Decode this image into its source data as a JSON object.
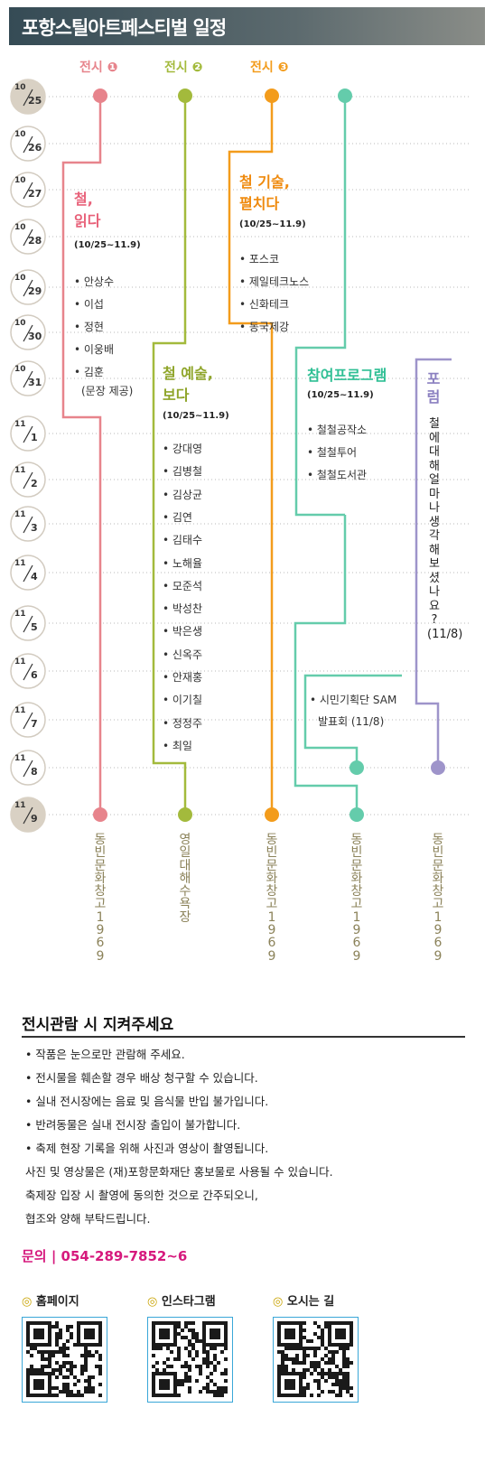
{
  "header": {
    "title": "포항스틸아트페스티벌 일정"
  },
  "columns": [
    {
      "label": "전시 ❶",
      "color": "#e7848c"
    },
    {
      "label": "전시 ❷",
      "color": "#a3ba3c"
    },
    {
      "label": "전시 ❸",
      "color": "#f39c1c"
    },
    {
      "label": "",
      "color": "#64ccab"
    },
    {
      "label": "",
      "color": "#9e94ca"
    }
  ],
  "dates": [
    {
      "top": "10",
      "bottom": "25",
      "highlight": true
    },
    {
      "top": "10",
      "bottom": "26",
      "highlight": false
    },
    {
      "top": "10",
      "bottom": "27",
      "highlight": false
    },
    {
      "top": "10",
      "bottom": "28",
      "highlight": false
    },
    {
      "top": "10",
      "bottom": "29",
      "highlight": false
    },
    {
      "top": "10",
      "bottom": "30",
      "highlight": false
    },
    {
      "top": "10",
      "bottom": "31",
      "highlight": false
    },
    {
      "top": "11",
      "bottom": "1",
      "highlight": false
    },
    {
      "top": "11",
      "bottom": "2",
      "highlight": false
    },
    {
      "top": "11",
      "bottom": "3",
      "highlight": false
    },
    {
      "top": "11",
      "bottom": "4",
      "highlight": false
    },
    {
      "top": "11",
      "bottom": "5",
      "highlight": false
    },
    {
      "top": "11",
      "bottom": "6",
      "highlight": false
    },
    {
      "top": "11",
      "bottom": "7",
      "highlight": false
    },
    {
      "top": "11",
      "bottom": "8",
      "highlight": false
    },
    {
      "top": "11",
      "bottom": "9",
      "highlight": true
    }
  ],
  "exhibitions": {
    "ex1": {
      "title": "철,\n읽다",
      "date": "(10/25~11.9)",
      "items": [
        "• 안상수",
        "• 이섭",
        "• 정현",
        "• 이웅배",
        "• 김훈",
        "(문장 제공)"
      ]
    },
    "ex2": {
      "title": "철 예술,\n보다",
      "date": "(10/25~11.9)",
      "items": [
        "• 강대영",
        "• 김병철",
        "• 김상균",
        "• 김연",
        "• 김태수",
        "• 노해율",
        "• 모준석",
        "• 박성찬",
        "• 박은생",
        "• 신옥주",
        "• 안재홍",
        "• 이기칠",
        "• 정정주",
        "• 최일"
      ]
    },
    "ex3": {
      "title": "철 기술,\n펼치다",
      "date": "(10/25~11.9)",
      "items": [
        "• 포스코",
        "• 제일테크노스",
        "• 신화테크",
        "• 동국제강"
      ]
    },
    "program": {
      "title": "참여프로그램",
      "date": "(10/25~11.9)",
      "items": [
        "• 철철공작소",
        "• 철철투어",
        "• 철철도서관"
      ]
    },
    "citizen": {
      "line1": "• 시민기획단 SAM",
      "line2": "발표회 (11/8)"
    },
    "forum": {
      "title": "포\n럼",
      "body": "철\n에\n대\n해\n얼\n마\n나\n생\n각\n해\n보\n셨\n나\n요\n?\n(11/8)"
    }
  },
  "venues": [
    "동빈문화창고1969",
    "영일대해수욕장",
    "동빈문화창고1969",
    "동빈문화창고1969",
    "동빈문화창고1969"
  ],
  "notice": {
    "title": "전시관람 시 지켜주세요",
    "items": [
      "•   작품은 눈으로만 관람해 주세요.",
      "•   전시물을 훼손할 경우 배상 청구할 수 있습니다.",
      "•   실내 전시장에는 음료 및 음식물 반입 불가입니다.",
      "•   반려동물은 실내 전시장 출입이 불가합니다.",
      "•   축제 현장 기록을 위해 사진과 영상이 촬영됩니다.",
      "     사진 및 영상물은 (재)포항문화재단 홍보물로 사용될 수 있습니다.",
      "     축제장 입장 시 촬영에 동의한 것으로 간주되오니,",
      "     협조와 양해 부탁드립니다."
    ]
  },
  "contact": "문의 | 054-289-7852~6",
  "qr": [
    {
      "bullet": "◎",
      "label": "홈페이지"
    },
    {
      "bullet": "◎",
      "label": "인스타그램"
    },
    {
      "bullet": "◎",
      "label": "오시는 길"
    }
  ]
}
